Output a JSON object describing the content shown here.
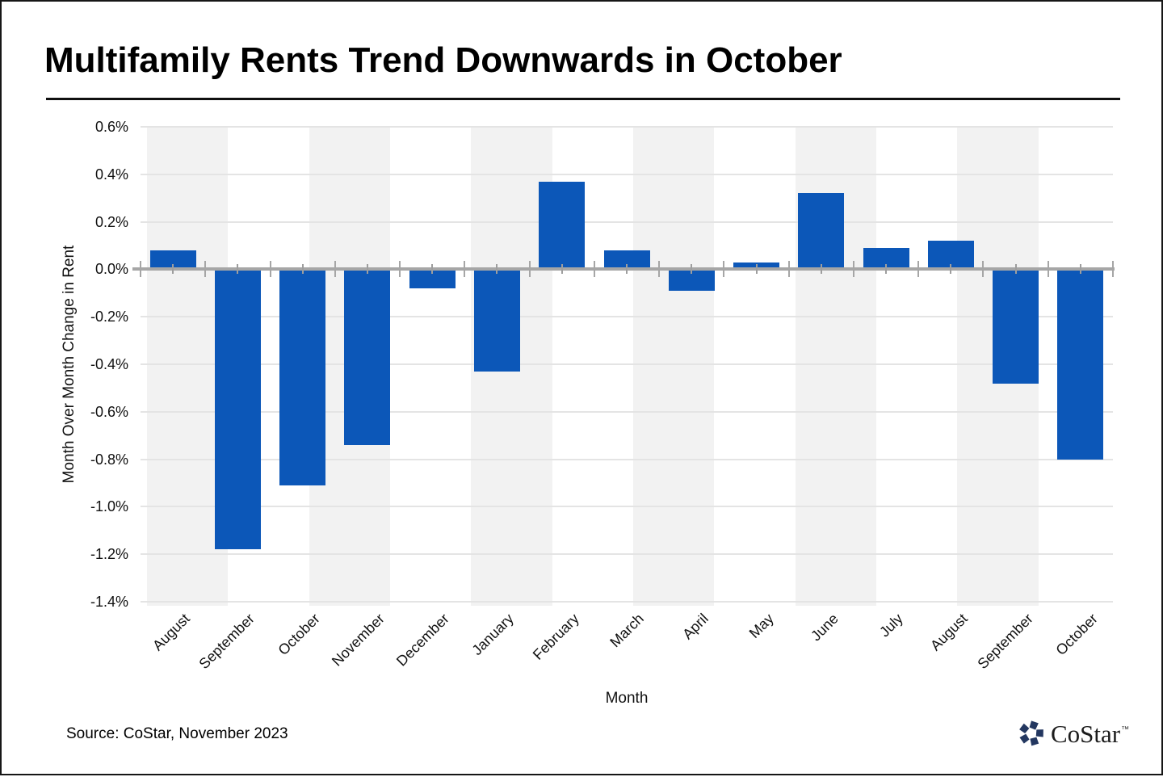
{
  "page": {
    "title": "Multifamily Rents Trend Downwards in October",
    "source": "Source: CoStar, November 2023",
    "logo": {
      "text": "CoStar",
      "tm": "™",
      "icon": "costar-pinwheel-icon",
      "color": "#233760"
    }
  },
  "chart_data": {
    "type": "bar",
    "title": "Multifamily Rents Trend Downwards in October",
    "xlabel": "Month",
    "ylabel": "Month Over Month Change in Rent",
    "categories": [
      "August",
      "September",
      "October",
      "November",
      "December",
      "January",
      "February",
      "March",
      "April",
      "May",
      "June",
      "July",
      "August",
      "September",
      "October"
    ],
    "values": [
      0.08,
      -1.18,
      -0.91,
      -0.74,
      -0.08,
      -0.43,
      0.37,
      0.08,
      -0.09,
      0.03,
      0.32,
      0.09,
      0.12,
      -0.48,
      -0.8
    ],
    "unit": "%",
    "ylim": [
      -1.4,
      0.6
    ],
    "ytick_step": 0.2,
    "ytick_labels": [
      "0.6%",
      "0.4%",
      "0.2%",
      "0.0%",
      "-0.2%",
      "-0.4%",
      "-0.6%",
      "-0.8%",
      "-1.0%",
      "-1.2%",
      "-1.4%"
    ],
    "bar_color": "#0C57B8",
    "grid": true,
    "gridline_color": "#E4E4E4",
    "axis_line_color": "#A6A6A6",
    "background_bands": {
      "count": 12,
      "color": "#F2F2F2"
    },
    "legend": "none"
  }
}
